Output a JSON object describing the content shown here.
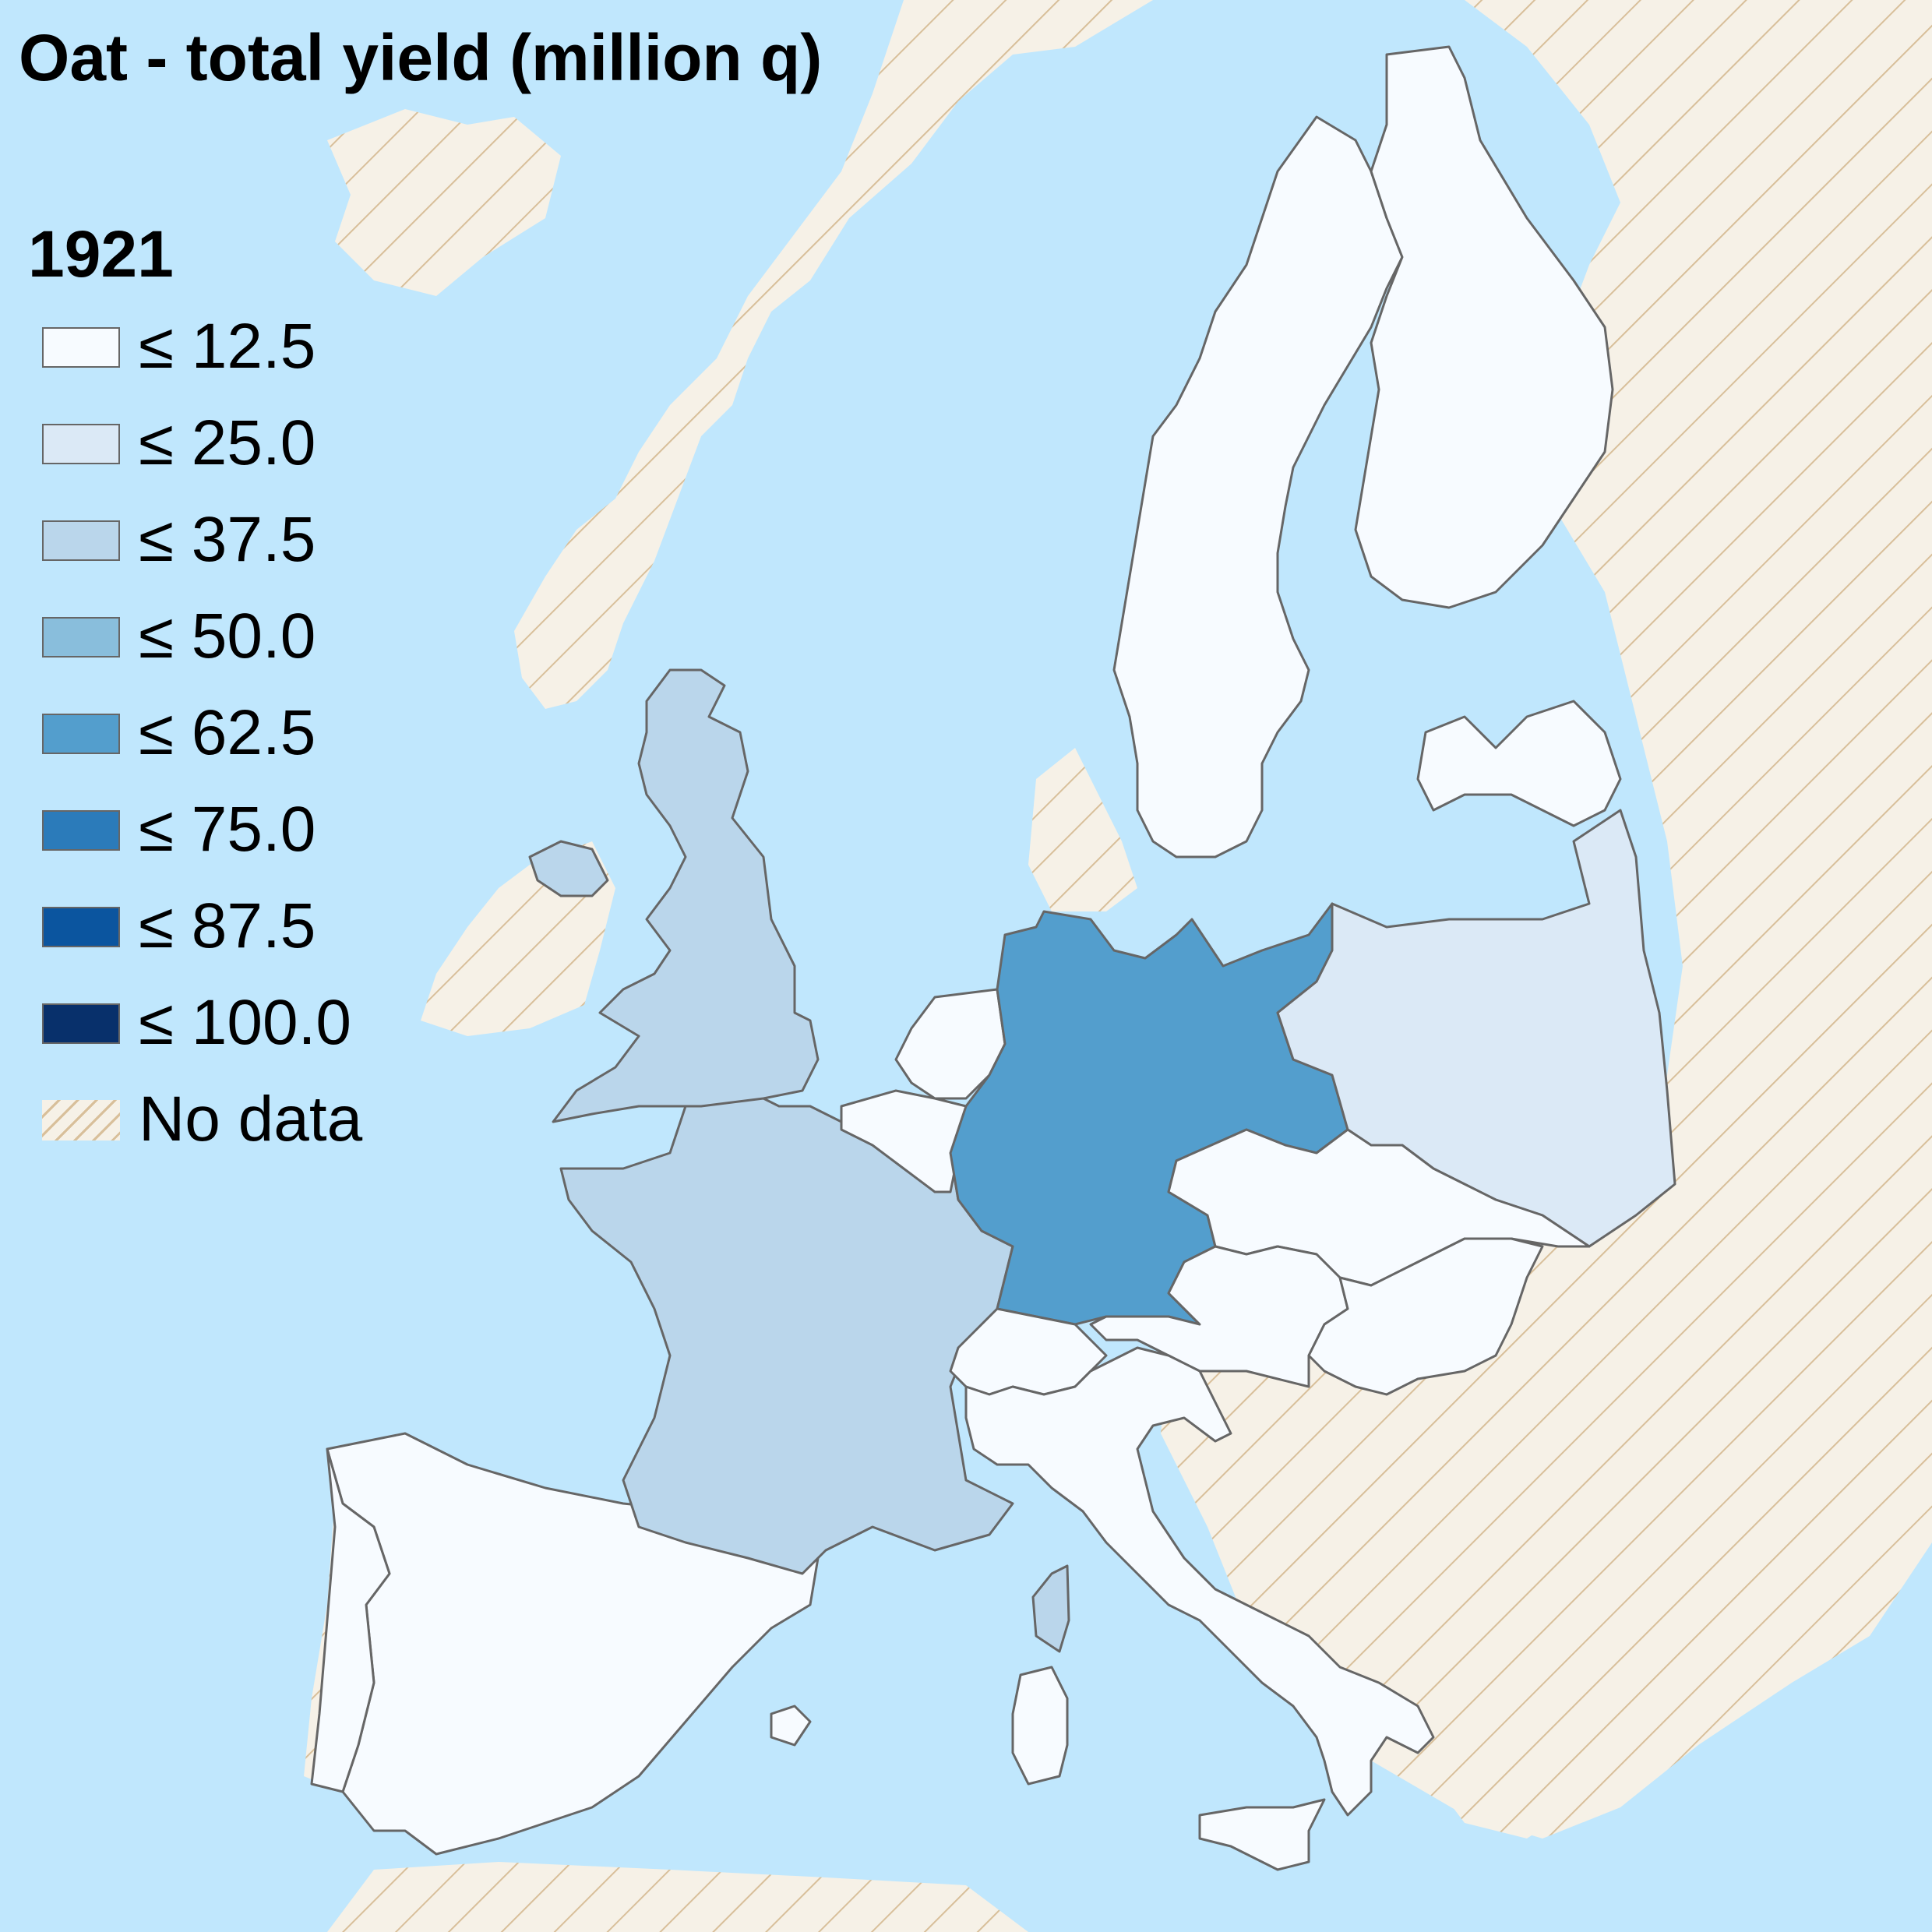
{
  "title": "Oat - total yield (million q)",
  "year": "1921",
  "legend": {
    "items": [
      {
        "label": "≤ 12.5",
        "color": "#f7fbff"
      },
      {
        "label": "≤ 25.0",
        "color": "#dbe9f6"
      },
      {
        "label": "≤ 37.5",
        "color": "#bad6eb"
      },
      {
        "label": "≤ 50.0",
        "color": "#89bedc"
      },
      {
        "label": "≤ 62.5",
        "color": "#539ecd"
      },
      {
        "label": "≤ 75.0",
        "color": "#2b7bba"
      },
      {
        "label": "≤ 87.5",
        "color": "#0b559f"
      },
      {
        "label": "≤ 100.0",
        "color": "#08306b"
      }
    ],
    "no_data_label": "No data"
  },
  "colors": {
    "sea": "#c0e7fd",
    "no_data_land": "#f6f1e7",
    "no_data_hatch": "#d8bf9a",
    "border": "#666666"
  },
  "regions": [
    {
      "name": "spain",
      "class": "≤ 12.5"
    },
    {
      "name": "portugal",
      "class": "≤ 12.5"
    },
    {
      "name": "france",
      "class": "≤ 37.5"
    },
    {
      "name": "corsica",
      "class": "≤ 37.5"
    },
    {
      "name": "united-kingdom",
      "class": "≤ 37.5"
    },
    {
      "name": "northern-ireland",
      "class": "≤ 37.5"
    },
    {
      "name": "ireland",
      "class": "No data"
    },
    {
      "name": "germany",
      "class": "≤ 62.5"
    },
    {
      "name": "poland",
      "class": "≤ 25.0"
    },
    {
      "name": "sweden",
      "class": "≤ 12.5"
    },
    {
      "name": "finland",
      "class": "≤ 12.5"
    },
    {
      "name": "latvia",
      "class": "≤ 12.5"
    },
    {
      "name": "netherlands",
      "class": "≤ 12.5"
    },
    {
      "name": "belgium",
      "class": "≤ 12.5"
    },
    {
      "name": "switzerland",
      "class": "≤ 12.5"
    },
    {
      "name": "italy",
      "class": "≤ 12.5"
    },
    {
      "name": "sardinia",
      "class": "≤ 12.5"
    },
    {
      "name": "sicily",
      "class": "≤ 12.5"
    },
    {
      "name": "austria",
      "class": "≤ 12.5"
    },
    {
      "name": "czechoslovakia",
      "class": "≤ 12.5"
    },
    {
      "name": "hungary",
      "class": "≤ 12.5"
    },
    {
      "name": "balearic-islands",
      "class": "≤ 12.5"
    }
  ]
}
